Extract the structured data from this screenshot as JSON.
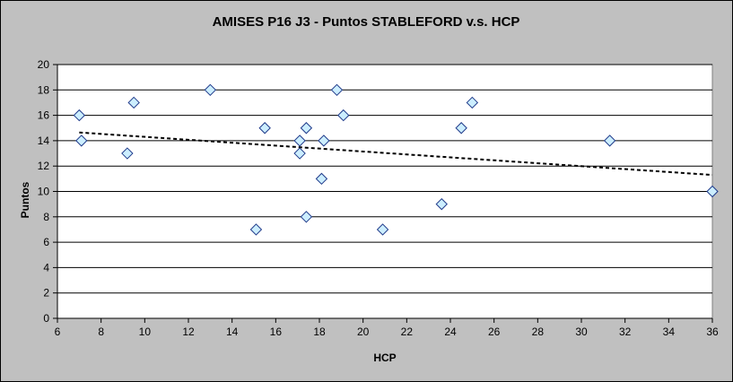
{
  "chart_data": {
    "type": "scatter",
    "title": "AMISES P16 J3 - Puntos STABLEFORD v.s. HCP",
    "xlabel": "HCP",
    "ylabel": "Puntos",
    "xlim": [
      6,
      36
    ],
    "ylim": [
      0,
      20
    ],
    "x_ticks": [
      6,
      8,
      10,
      12,
      14,
      16,
      18,
      20,
      22,
      24,
      26,
      28,
      30,
      32,
      34,
      36
    ],
    "y_ticks": [
      0,
      2,
      4,
      6,
      8,
      10,
      12,
      14,
      16,
      18,
      20
    ],
    "grid": "horizontal major",
    "legend": "none",
    "points": [
      {
        "x": 7.0,
        "y": 16
      },
      {
        "x": 7.1,
        "y": 14
      },
      {
        "x": 9.2,
        "y": 13
      },
      {
        "x": 9.5,
        "y": 17
      },
      {
        "x": 13.0,
        "y": 18
      },
      {
        "x": 15.1,
        "y": 7
      },
      {
        "x": 15.5,
        "y": 15
      },
      {
        "x": 17.1,
        "y": 14
      },
      {
        "x": 17.1,
        "y": 13
      },
      {
        "x": 17.4,
        "y": 15
      },
      {
        "x": 17.4,
        "y": 8
      },
      {
        "x": 18.1,
        "y": 11
      },
      {
        "x": 18.2,
        "y": 14
      },
      {
        "x": 18.8,
        "y": 18
      },
      {
        "x": 19.1,
        "y": 16
      },
      {
        "x": 20.9,
        "y": 7
      },
      {
        "x": 23.6,
        "y": 9
      },
      {
        "x": 24.5,
        "y": 15
      },
      {
        "x": 25.0,
        "y": 17
      },
      {
        "x": 31.3,
        "y": 14
      },
      {
        "x": 36.0,
        "y": 10
      }
    ],
    "trendline": {
      "type": "linear",
      "style": "dashed",
      "x_start": 7.0,
      "y_start": 14.65,
      "x_end": 36.0,
      "y_end": 11.3
    },
    "colors": {
      "background": "#c0c0c0",
      "plot_area": "#ffffff",
      "marker_fill": "#cceeff",
      "marker_stroke": "#1f3a8a",
      "gridline": "#000000",
      "trendline": "#000000"
    }
  }
}
